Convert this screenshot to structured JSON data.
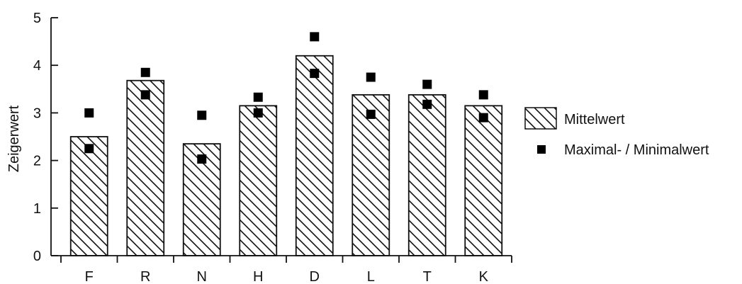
{
  "chart_data": {
    "type": "bar",
    "title": "",
    "xlabel": "",
    "ylabel": "Zeigerwert",
    "ylim": [
      0,
      5
    ],
    "yticks": [
      "0",
      "1",
      "2",
      "3",
      "4",
      "5"
    ],
    "grid": false,
    "legend_position": "right",
    "categories": [
      "F",
      "R",
      "N",
      "H",
      "D",
      "L",
      "T",
      "K"
    ],
    "series": [
      {
        "name": "Mittelwert",
        "kind": "bar",
        "values": [
          2.5,
          3.68,
          2.35,
          3.15,
          4.2,
          3.38,
          3.38,
          3.15
        ]
      },
      {
        "name": "Maximal- / Minimalwert",
        "kind": "points",
        "max": [
          3.0,
          3.85,
          2.95,
          3.33,
          4.6,
          3.75,
          3.6,
          3.38
        ],
        "min": [
          2.25,
          3.38,
          2.03,
          3.0,
          3.83,
          2.97,
          3.18,
          2.9
        ]
      }
    ],
    "colors": {
      "ink": "#111111",
      "marker": "#000000"
    }
  },
  "legend": {
    "mean_label": "Mittelwert",
    "minmax_label": "Maximal- / Minimalwert"
  }
}
